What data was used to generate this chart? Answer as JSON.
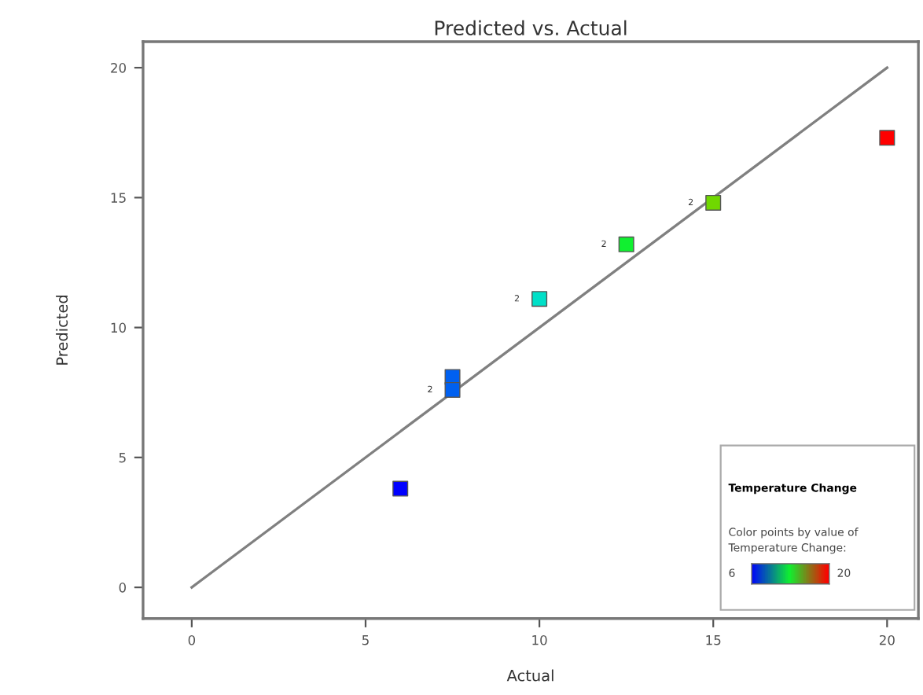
{
  "chart_data": {
    "type": "scatter",
    "title": "Predicted vs. Actual",
    "xlabel": "Actual",
    "ylabel": "Predicted",
    "legend_title": "Temperature Change",
    "clabel": "Color points by value of Temperature Change:",
    "series": [
      {
        "type": "line",
        "color": "#808080",
        "x": [
          0,
          20
        ],
        "values": [
          0,
          20
        ],
        "marker": "none",
        "line_style": "solid"
      },
      {
        "x": [
          6,
          7.5,
          7.5,
          10,
          12.5,
          15,
          20
        ],
        "values": [
          3.8,
          8.1,
          7.6,
          11.1,
          13.2,
          14.8,
          17.3
        ],
        "colors": [
          "#0000ff",
          "#0060f0",
          "#0060f0",
          "#00e0c8",
          "#10f030",
          "#70d800",
          "#ff0000"
        ],
        "marker": "square"
      }
    ],
    "annotations": [
      {
        "text": "2",
        "x": 7.5,
        "y": 7.6
      },
      {
        "text": "2",
        "x": 10,
        "y": 11.1
      },
      {
        "text": "2",
        "x": 12.5,
        "y": 13.2
      },
      {
        "text": "2",
        "x": 15,
        "y": 14.8
      },
      "6",
      "20"
    ],
    "xlim": [
      -1.4,
      20.9
    ],
    "ylim": [
      -1.2,
      21
    ],
    "xticks": [
      0,
      5,
      10,
      15,
      20
    ],
    "yticks": [
      0,
      5,
      10,
      15,
      20
    ],
    "grid": false
  }
}
